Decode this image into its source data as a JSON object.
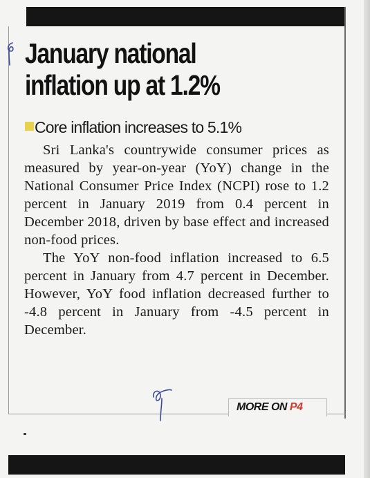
{
  "article": {
    "headline_line1": "January national",
    "headline_line2": "inflation up at 1.2%",
    "subheadline": "Core inflation increases to 5.1%",
    "paragraph1": "Sri Lanka's countrywide consumer prices as measured by year-on-year (YoY) change in the National Consumer Price Index (NCPI) rose to 1.2 percent in January 2019 from 0.4 percent in December 2018, driven by base effect and increased non-food prices.",
    "paragraph2": "The YoY non-food inflation increased to 6.5 percent in January from 4.7 percent in December. However, YoY food inflation decreased further to -4.8 percent in January from -4.5 percent in December.",
    "more_label": "MORE ON",
    "more_page": "P4"
  },
  "colors": {
    "bars": "#151515",
    "bullet": "#e8d24a",
    "page_ref": "#d23a2e"
  },
  "icons": {
    "bullet": "yellow-square-bullet-icon",
    "pen_marks": "handwritten-tick-mark"
  }
}
